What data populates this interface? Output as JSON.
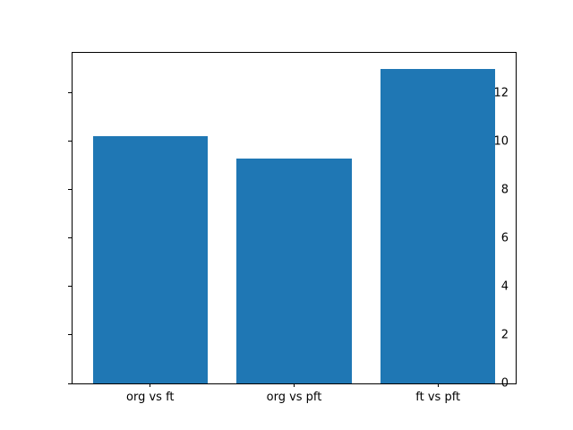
{
  "chart_data": {
    "type": "bar",
    "title": "",
    "xlabel": "",
    "ylabel": "",
    "categories": [
      "org vs ft",
      "org vs pft",
      "ft vs pft"
    ],
    "values": [
      10.2,
      9.3,
      13.0
    ],
    "ylim": [
      0,
      13.65
    ],
    "xlim": [
      -0.54,
      2.54
    ],
    "yticks": [
      0,
      2,
      4,
      6,
      8,
      10,
      12
    ],
    "bar_width_fraction": 0.8,
    "bar_color": "#1f77b4",
    "axis_color": "#000000",
    "background_color": "#ffffff",
    "grid": false,
    "legend": null
  }
}
